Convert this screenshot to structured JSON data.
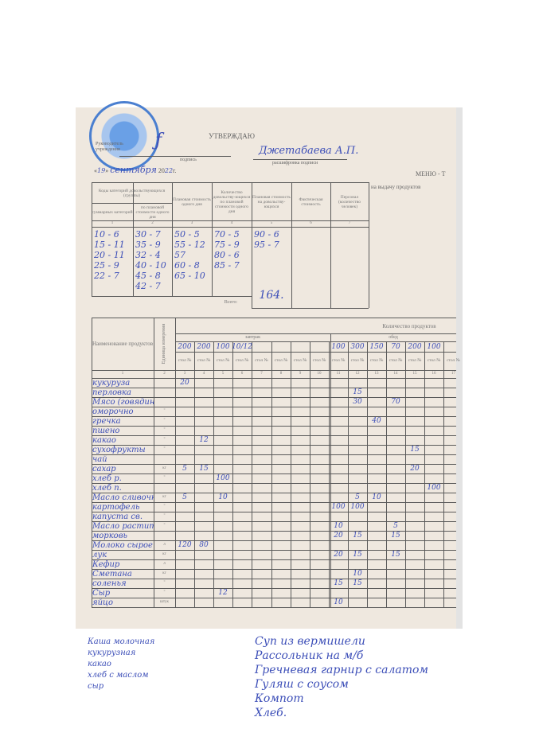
{
  "header": {
    "approve": "УТВЕРЖДАЮ",
    "head_label": "Руководитель учреждения",
    "signature_label": "подпись",
    "signature_name": "Джетабаева А.П.",
    "decoding_label": "расшифровка подписи",
    "date_day": "19",
    "date_month": "сентября",
    "date_year_prefix": "20",
    "date_year_hand": "22",
    "date_suffix": "г.",
    "menu_title": "МЕНЮ - Т",
    "menu_subtitle": "на выдачу продуктов"
  },
  "top_table": {
    "headers": [
      "Коды категорий довольствующихся (группы)",
      "Плановая стоимость одного дня",
      "Количество довольству-ющихся по плановой стоимости одного дня",
      "Плановая стоимость на довольству-ющихся",
      "Фактическая стоимость",
      "Персонал (количество человек)"
    ],
    "subheaders": [
      "суммарных категорий",
      "по плановой стоимости одного дня"
    ],
    "col_numbers": [
      "1",
      "2",
      "3",
      "4",
      "5",
      "6",
      "7"
    ],
    "col1": [
      "10 - 6",
      "15 - 11",
      "20 - 11",
      "25 - 9",
      "22 - 7"
    ],
    "col2": [
      "30 - 7",
      "35 - 9",
      "32 - 4",
      "40 - 10",
      "45 - 8",
      "42 - 7"
    ],
    "col3": [
      "50 - 5",
      "55 - 12",
      "57",
      "60 - 8",
      "65 - 10"
    ],
    "col4": [
      "70 - 5",
      "75 - 9",
      "80 - 6",
      "85 - 7"
    ],
    "col5": [
      "90 - 6",
      "95 - 7"
    ],
    "total_label": "Всего:",
    "total_value": "164."
  },
  "dishes_breakfast": [
    "Каша молочная",
    "кукурузная",
    "какао",
    "хлеб с маслом",
    "сыр"
  ],
  "dishes_lunch": [
    "Суп из вермишели",
    "Рассольник на м/б",
    "Гречневая гарнир с салатом",
    "Гуляш с соусом",
    "Компот",
    "Хлеб."
  ],
  "main_table": {
    "name_header": "Наименование продуктов",
    "unit_header": "Единица измерения",
    "quantity_header": "Количество продуктов",
    "breakfast": "завтрак",
    "lunch": "обед",
    "table_label": "стол №",
    "portions": {
      "3": "200",
      "4": "200",
      "5": "100",
      "6": "10/12",
      "11": "100",
      "12": "300",
      "13": "150",
      "14": "70",
      "15": "200",
      "16": "100"
    },
    "col_numbers": [
      "1",
      "2",
      "3",
      "4",
      "5",
      "6",
      "7",
      "8",
      "9",
      "10",
      "11",
      "12",
      "13",
      "14",
      "15",
      "16",
      "17"
    ],
    "rows": [
      {
        "name": "кукуруза",
        "unit": "",
        "v": {
          "3": "20"
        }
      },
      {
        "name": "перловка",
        "unit": "",
        "v": {
          "12": "15"
        }
      },
      {
        "name": "Мясо (говядина, баранина)",
        "unit": "",
        "v": {
          "12": "30",
          "14": "70"
        }
      },
      {
        "name": "оморочно",
        "unit": "\"",
        "v": {}
      },
      {
        "name": "гречка",
        "unit": "\"",
        "v": {
          "13": "40"
        }
      },
      {
        "name": "пшено",
        "unit": "\"",
        "v": {}
      },
      {
        "name": "какао",
        "unit": "\"",
        "v": {
          "4": "12"
        }
      },
      {
        "name": "сухофрукты",
        "unit": "\"",
        "v": {
          "15": "15"
        }
      },
      {
        "name": "чай",
        "unit": "",
        "v": {}
      },
      {
        "name": "сахар",
        "unit": "кг",
        "v": {
          "3": "5",
          "4": "15",
          "15": "20"
        }
      },
      {
        "name": "хлеб р.",
        "unit": "\"",
        "v": {
          "5": "100"
        }
      },
      {
        "name": "хлеб п.",
        "unit": "",
        "v": {
          "16": "100"
        }
      },
      {
        "name": "Масло сливочное",
        "unit": "кг",
        "v": {
          "3": "5",
          "5": "10",
          "12": "5",
          "13": "10"
        }
      },
      {
        "name": "картофель",
        "unit": "\"",
        "v": {
          "11": "100",
          "12": "100"
        }
      },
      {
        "name": "капуста св.",
        "unit": "\"",
        "v": {}
      },
      {
        "name": "Масло растительное",
        "unit": "\"",
        "v": {
          "11": "10",
          "14": "5"
        }
      },
      {
        "name": "морковь",
        "unit": "",
        "v": {
          "11": "20",
          "12": "15",
          "14": "15"
        }
      },
      {
        "name": "Молоко сырое",
        "unit": "л",
        "v": {
          "3": "120",
          "4": "80"
        }
      },
      {
        "name": "лук",
        "unit": "кг",
        "v": {
          "11": "20",
          "12": "15",
          "14": "15"
        }
      },
      {
        "name": "Кефир",
        "unit": "л",
        "v": {}
      },
      {
        "name": "Сметана",
        "unit": "кг",
        "v": {
          "12": "10"
        }
      },
      {
        "name": "соленья",
        "unit": "\"",
        "v": {
          "11": "15",
          "12": "15"
        }
      },
      {
        "name": "Сыр",
        "unit": "\"",
        "v": {
          "5": "12"
        }
      },
      {
        "name": "яйцо",
        "unit": "штук",
        "v": {
          "11": "10"
        }
      }
    ]
  },
  "colors": {
    "ink": "#3d4fb8",
    "paper": "#efe8df",
    "stamp": "#4a7fd0"
  }
}
